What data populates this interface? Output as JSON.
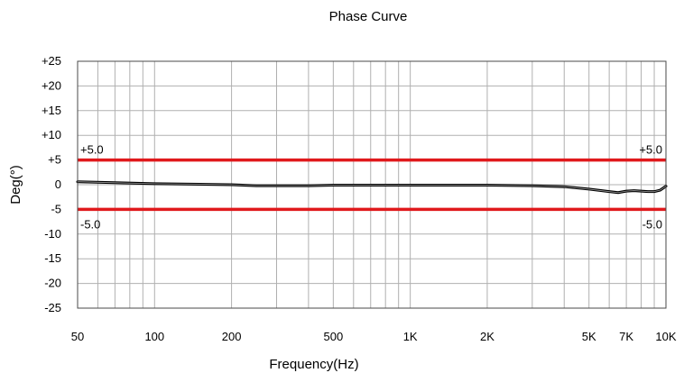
{
  "chart_data": {
    "type": "line",
    "title": "Phase Curve",
    "xlabel": "Frequency(Hz)",
    "ylabel": "Deg(°)",
    "x_scale": "log",
    "xlim": [
      50,
      10000
    ],
    "ylim": [
      -25,
      25
    ],
    "x_ticks": [
      {
        "value": 50,
        "label": "50"
      },
      {
        "value": 100,
        "label": "100"
      },
      {
        "value": 200,
        "label": "200"
      },
      {
        "value": 500,
        "label": "500"
      },
      {
        "value": 1000,
        "label": "1K"
      },
      {
        "value": 2000,
        "label": "2K"
      },
      {
        "value": 5000,
        "label": "5K"
      },
      {
        "value": 7000,
        "label": "7K"
      },
      {
        "value": 10000,
        "label": "10K"
      }
    ],
    "y_ticks": [
      {
        "value": 25,
        "label": "+25"
      },
      {
        "value": 20,
        "label": "+20"
      },
      {
        "value": 15,
        "label": "+15"
      },
      {
        "value": 10,
        "label": "+10"
      },
      {
        "value": 5,
        "label": "+5"
      },
      {
        "value": 0,
        "label": "0"
      },
      {
        "value": -5,
        "label": "-5"
      },
      {
        "value": -10,
        "label": "-10"
      },
      {
        "value": -15,
        "label": "-15"
      },
      {
        "value": -20,
        "label": "-20"
      },
      {
        "value": -25,
        "label": "-25"
      }
    ],
    "grid": true,
    "limit_lines": [
      {
        "value": 5,
        "label": "+5.0",
        "color": "#e0191c"
      },
      {
        "value": -5,
        "label": "-5.0",
        "color": "#e0191c"
      }
    ],
    "series": [
      {
        "color": "#000000",
        "x": [
          50,
          70,
          100,
          150,
          200,
          250,
          300,
          400,
          500,
          700,
          1000,
          1500,
          2000,
          3000,
          4000,
          5000,
          6000,
          6500,
          7000,
          7500,
          8000,
          8500,
          9000,
          9500,
          10000
        ],
        "y": [
          0.6,
          0.4,
          0.2,
          0.1,
          0.0,
          -0.2,
          -0.2,
          -0.2,
          -0.1,
          -0.1,
          -0.1,
          -0.1,
          -0.1,
          -0.2,
          -0.4,
          -0.9,
          -1.4,
          -1.6,
          -1.3,
          -1.2,
          -1.3,
          -1.4,
          -1.4,
          -1.1,
          -0.3
        ]
      }
    ]
  }
}
